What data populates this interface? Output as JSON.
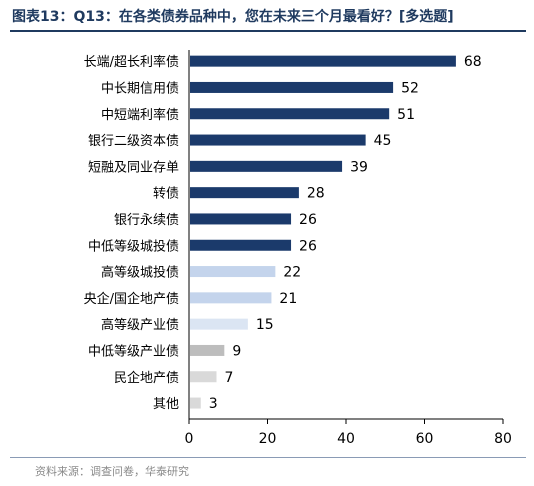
{
  "figure": {
    "title": "图表13：Q13：在各类债券品种中，您在未来三个月最看好？[多选题]",
    "source": "资料来源：调查问卷，华泰研究"
  },
  "colors": {
    "title": "#1f3a5f",
    "dark_bar": "#1b3a6b",
    "light_bar": "#c4d4ec",
    "lighter_bar": "#dbe5f3",
    "gray_bar": "#bdbdbd",
    "light_gray_bar": "#d9d9d9"
  },
  "chart_data": {
    "type": "bar",
    "orientation": "horizontal",
    "categories": [
      "长端/超长利率债",
      "中长期信用债",
      "中短端利率债",
      "银行二级资本债",
      "短融及同业存单",
      "转债",
      "银行永续债",
      "中低等级城投债",
      "高等级城投债",
      "央企/国企地产债",
      "高等级产业债",
      "中低等级产业债",
      "民企地产债",
      "其他"
    ],
    "values": [
      68,
      52,
      51,
      45,
      39,
      28,
      26,
      26,
      22,
      21,
      15,
      9,
      7,
      3
    ],
    "bar_colors": [
      "#1b3a6b",
      "#1b3a6b",
      "#1b3a6b",
      "#1b3a6b",
      "#1b3a6b",
      "#1b3a6b",
      "#1b3a6b",
      "#1b3a6b",
      "#c4d4ec",
      "#c4d4ec",
      "#dbe5f3",
      "#bdbdbd",
      "#d9d9d9",
      "#d9d9d9"
    ],
    "xlim": [
      0,
      80
    ],
    "xticks": [
      0,
      20,
      40,
      60,
      80
    ],
    "grid": false,
    "data_labels": true
  }
}
